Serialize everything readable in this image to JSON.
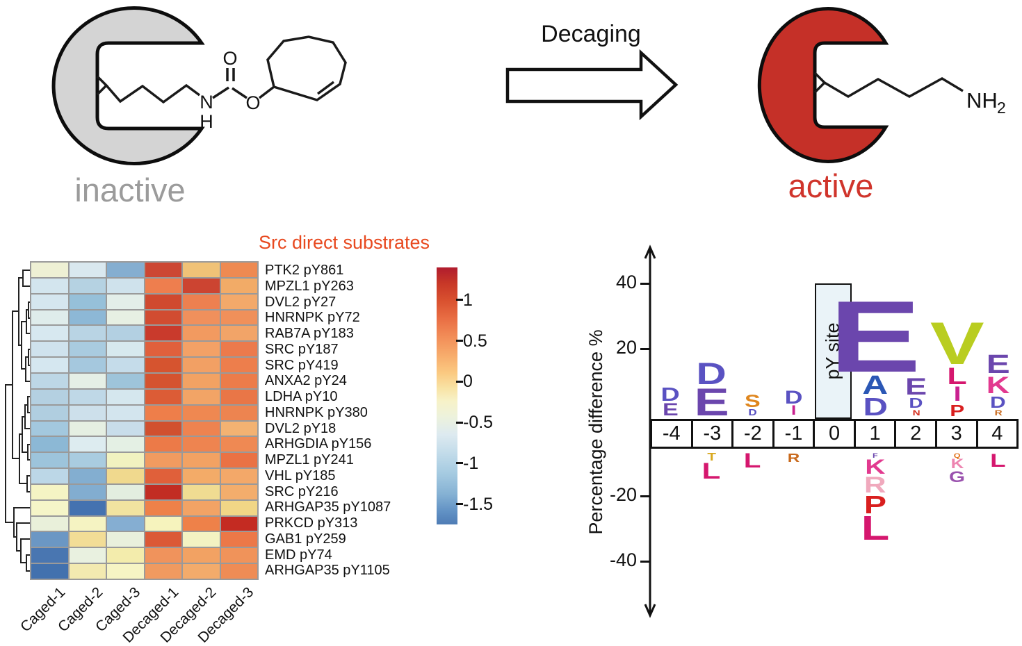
{
  "top_panel": {
    "inactive_label": "inactive",
    "active_label": "active",
    "arrow_label": "Decaging",
    "chem": {
      "n": "N",
      "h": "H",
      "carbonyl_o": "O",
      "ester_o": "O",
      "amine": "NH",
      "amine_sub": "2"
    },
    "colors": {
      "inactive_fill": "#d4d4d4",
      "active_fill": "#c53028",
      "outline": "#0d0d0d"
    }
  },
  "chart_data": [
    {
      "type": "heatmap",
      "title": "Src direct substrates",
      "title_color": "#e8491f",
      "columns": [
        "Caged-1",
        "Caged-2",
        "Caged-3",
        "Decaged-1",
        "Decaged-2",
        "Decaged-3"
      ],
      "rows": [
        "PTK2 pY861",
        "MPZL1 pY263",
        "DVL2 pY27",
        "HNRNPK pY72",
        "RAB7A pY183",
        "SRC pY187",
        "SRC pY419",
        "ANXA2 pY24",
        "LDHA pY10",
        "HNRNPK pY380",
        "DVL2 pY18",
        "ARHGDIA pY156",
        "MPZL1 pY241",
        "VHL pY185",
        "SRC pY216",
        "ARHGAP35 pY1087",
        "PRKCD pY313",
        "GAB1 pY259",
        "EMD pY74",
        "ARHGAP35 pY1105"
      ],
      "values": [
        [
          -0.05,
          -0.35,
          -0.95,
          1.1,
          0.35,
          0.65
        ],
        [
          -0.45,
          -0.6,
          -0.45,
          0.7,
          1.1,
          0.5
        ],
        [
          -0.45,
          -0.8,
          -0.2,
          1.0,
          0.7,
          0.5
        ],
        [
          -0.3,
          -0.85,
          -0.15,
          1.0,
          0.6,
          0.6
        ],
        [
          -0.4,
          -0.55,
          -0.6,
          1.15,
          0.55,
          0.5
        ],
        [
          -0.45,
          -0.65,
          -0.35,
          0.85,
          0.5,
          0.7
        ],
        [
          -0.4,
          -0.7,
          -0.5,
          0.95,
          0.5,
          0.7
        ],
        [
          -0.55,
          -0.2,
          -0.75,
          0.95,
          0.5,
          0.7
        ],
        [
          -0.6,
          -0.55,
          -0.4,
          0.85,
          0.5,
          0.75
        ],
        [
          -0.65,
          -0.5,
          -0.45,
          0.7,
          0.65,
          0.65
        ],
        [
          -0.7,
          -0.2,
          -0.5,
          1.0,
          0.65,
          0.4
        ],
        [
          -0.85,
          -0.3,
          -0.15,
          0.7,
          0.65,
          0.6
        ],
        [
          -0.75,
          -0.65,
          0.05,
          0.55,
          0.5,
          0.75
        ],
        [
          -0.55,
          -0.95,
          0.3,
          0.85,
          0.45,
          0.5
        ],
        [
          0.05,
          -0.95,
          -0.2,
          1.25,
          0.2,
          0.45
        ],
        [
          0.05,
          -1.45,
          0.15,
          0.7,
          0.5,
          0.3
        ],
        [
          -0.1,
          0.05,
          -0.95,
          0.0,
          0.7,
          1.25
        ],
        [
          -1.1,
          0.25,
          -0.1,
          0.9,
          0.05,
          0.7
        ],
        [
          -1.35,
          -0.15,
          0.1,
          0.6,
          0.5,
          0.6
        ],
        [
          -1.4,
          0.1,
          0.05,
          0.55,
          0.45,
          0.65
        ]
      ],
      "cell_colors": [
        [
          "#eef0d4",
          "#d9e8ef",
          "#85aed0",
          "#cc4733",
          "#f0c277",
          "#ee8a52"
        ],
        [
          "#d3e5ee",
          "#b5d2e2",
          "#cfe2ec",
          "#ee7e4e",
          "#cc4431",
          "#f2ab67"
        ],
        [
          "#d5e6ef",
          "#96c0d9",
          "#e3eee9",
          "#d0492f",
          "#ed8050",
          "#f3a96a"
        ],
        [
          "#dfeceb",
          "#8db8d6",
          "#e7f0e3",
          "#d14c31",
          "#f0905c",
          "#f0905a"
        ],
        [
          "#d7e8f0",
          "#b9d4e4",
          "#b3d0e2",
          "#c93a2c",
          "#f29a60",
          "#f2a468"
        ],
        [
          "#cfe2ed",
          "#a9cbdf",
          "#d7e9ee",
          "#e0603c",
          "#f3a166",
          "#ec7a4c"
        ],
        [
          "#d5e7f0",
          "#a5c8de",
          "#c5dcea",
          "#d6542f",
          "#f2a064",
          "#ed7e4c"
        ],
        [
          "#bdd7e6",
          "#e5efe6",
          "#9ec4da",
          "#d5532f",
          "#f2a263",
          "#ec7c4a"
        ],
        [
          "#b4d0e1",
          "#bfd8e7",
          "#d5e7ee",
          "#dc5c36",
          "#f2a466",
          "#e97647"
        ],
        [
          "#b0cee0",
          "#cde0eb",
          "#d3e5ee",
          "#ee7e4a",
          "#ef8851",
          "#ed8450"
        ],
        [
          "#a3c8de",
          "#e5efe2",
          "#c8ddea",
          "#d1502f",
          "#ee8350",
          "#f3b272"
        ],
        [
          "#8cb8d5",
          "#ddecf0",
          "#e4f0e4",
          "#ec7a48",
          "#ee8450",
          "#ef8953"
        ],
        [
          "#9dc4db",
          "#a9cce0",
          "#f1f2c0",
          "#f19b60",
          "#f2a263",
          "#ea7244"
        ],
        [
          "#bcd7e7",
          "#83aed0",
          "#f0d98e",
          "#e0603a",
          "#f3ab68",
          "#f3a869"
        ],
        [
          "#f5f4c4",
          "#82add0",
          "#e3eee0",
          "#c22d23",
          "#f0dc92",
          "#f3ad6c"
        ],
        [
          "#f5f5c8",
          "#4472b0",
          "#f1e3a0",
          "#ee8149",
          "#f2a365",
          "#f1d686"
        ],
        [
          "#e9f0da",
          "#f5f3c2",
          "#85aed2",
          "#f6f3bd",
          "#ee8149",
          "#c42b22"
        ],
        [
          "#6b97c4",
          "#f2dd96",
          "#e9f0dc",
          "#db5936",
          "#f3f3c2",
          "#ec7848"
        ],
        [
          "#4976b1",
          "#e9f1e0",
          "#f3ecac",
          "#f0935c",
          "#f2a263",
          "#f0935a"
        ],
        [
          "#4271ae",
          "#f3eab0",
          "#f6f4c4",
          "#f09a60",
          "#f3ab6b",
          "#ef8c55"
        ]
      ],
      "colorbar": {
        "ticks": [
          1,
          0.5,
          0,
          -0.5,
          -1,
          -1.5
        ],
        "top_value": 1.4,
        "bottom_value": -1.75,
        "palette": "RdYlBu"
      },
      "legend_position": "right",
      "row_dendrogram": true
    },
    {
      "type": "sequence_logo",
      "ylabel": "Percentage difference %",
      "yticks": [
        40,
        20,
        -20,
        -40
      ],
      "ylim": [
        -50,
        50
      ],
      "positions": [
        "-4",
        "-3",
        "-2",
        "-1",
        "0",
        "1",
        "2",
        "3",
        "4"
      ],
      "py_site": {
        "position": 0,
        "label": "pY site",
        "height_pct": 40,
        "fill": "#eaf3f8"
      },
      "letter_colors": {
        "A": "#2b57b5",
        "D": "#5a52c2",
        "E": "#6b46ad",
        "S": "#df861e",
        "I": "#c9218f",
        "N": "#d42f1f",
        "V": "#b9cd20",
        "L": "#d5176e",
        "P": "#d91f1f",
        "K": "#e2398f",
        "R": "#c96a1d",
        "T": "#d8a81e",
        "G": "#9a52ae",
        "Q": "#e2731c",
        "F": "#6b46ad"
      },
      "above": {
        "-4": [
          [
            "D",
            4.2
          ],
          [
            "E",
            3.8
          ]
        ],
        "-3": [
          [
            "D",
            6.7
          ],
          [
            "E",
            8.4
          ]
        ],
        "-2": [
          [
            "S",
            3.8
          ],
          [
            "D",
            1.9
          ]
        ],
        "-1": [
          [
            "D",
            4.0
          ],
          [
            "I",
            2.9
          ]
        ],
        "1": [
          [
            "E",
            22.0
          ],
          [
            "A",
            5.7
          ],
          [
            "D",
            5.5
          ]
        ],
        "2": [
          [
            "E",
            5.2
          ],
          [
            "D",
            3.1
          ],
          [
            "N",
            1.7
          ]
        ],
        "3": [
          [
            "V",
            13.0
          ],
          [
            "L",
            5.2
          ],
          [
            "I",
            4.4
          ],
          [
            "P",
            3.5
          ]
        ],
        "4": [
          [
            "E",
            5.7
          ],
          [
            "K",
            5.2
          ],
          [
            "D",
            3.5
          ],
          [
            "R",
            1.7
          ]
        ]
      },
      "below": {
        "-3": [
          [
            "T",
            2.3
          ],
          [
            "L",
            4.9
          ]
        ],
        "-2": [
          [
            "L",
            4.5
          ]
        ],
        "-1": [
          [
            "R",
            2.7
          ]
        ],
        "1": [
          [
            "F",
            1.4
          ],
          [
            "K",
            4.5
          ],
          [
            "R",
            4.9,
            "#f0a9bd"
          ],
          [
            "P",
            5.4
          ],
          [
            "L",
            7.4
          ]
        ],
        "3": [
          [
            "Q",
            1.4
          ],
          [
            "K",
            2.9,
            "#ed85b0"
          ],
          [
            "G",
            3.3
          ]
        ],
        "4": [
          [
            "L",
            4.1
          ]
        ]
      }
    }
  ]
}
